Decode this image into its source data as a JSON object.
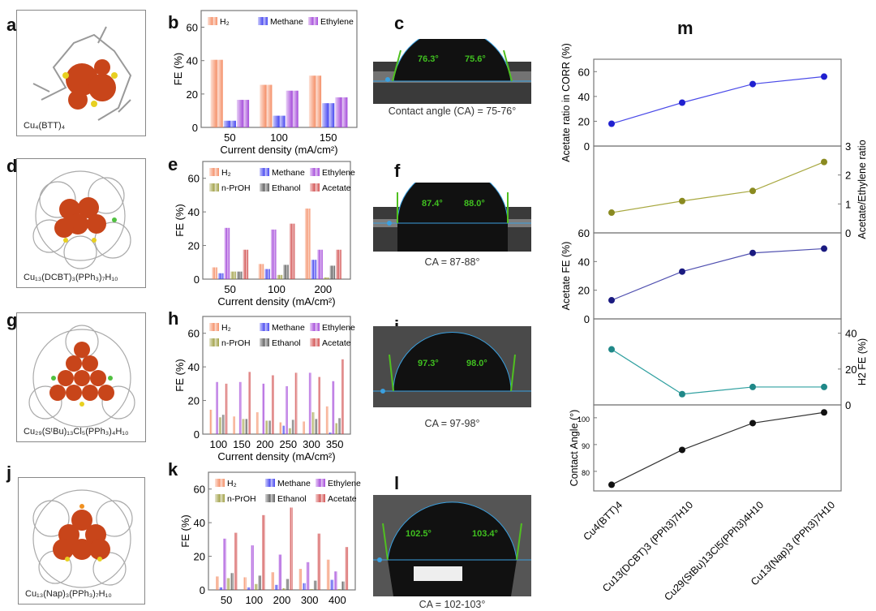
{
  "panel_letters": {
    "a": "a",
    "b": "b",
    "c": "c",
    "d": "d",
    "e": "e",
    "f": "f",
    "g": "g",
    "h": "h",
    "i": "i",
    "j": "j",
    "k": "k",
    "l": "l",
    "m": "m"
  },
  "molecules": [
    {
      "caption": "Cu₄(BTT)₄"
    },
    {
      "caption": "Cu₁₃(DCBT)₃(PPh₃)₇H₁₀"
    },
    {
      "caption": "Cu₂₉(SᵗBu)₁₃Cl₅(PPh₃)₄H₁₀"
    },
    {
      "caption": "Cu₁₃(Nap)₃(PPh₃)₇H₁₀"
    }
  ],
  "contact_angles": [
    {
      "left": "76.3°",
      "right": "75.6°",
      "caption": "Contact angle (CA) = 75-76°"
    },
    {
      "left": "87.4°",
      "right": "88.0°",
      "caption": "CA = 87-88°"
    },
    {
      "left": "97.3°",
      "right": "98.0°",
      "caption": "CA = 97-98°"
    },
    {
      "left": "102.5°",
      "right": "103.4°",
      "caption": "CA = 102-103°"
    }
  ],
  "colors": {
    "H2": "#f4895f",
    "Methane": "#3b3bef",
    "Ethylene": "#a040d8",
    "n-PrOH": "#9a9a3a",
    "Ethanol": "#555555",
    "Acetate": "#d04848"
  },
  "chart_data": [
    {
      "id": "b",
      "type": "bar",
      "ylabel": "FE (%)",
      "xlabel": "Current density (mA/cm²)",
      "ylim": [
        0,
        70
      ],
      "yticks": [
        0,
        20,
        40,
        60
      ],
      "categories": [
        "50",
        "100",
        "150"
      ],
      "series": [
        {
          "name": "H₂",
          "key": "H2",
          "values": [
            40.5,
            25.5,
            31
          ]
        },
        {
          "name": "Methane",
          "key": "Methane",
          "values": [
            4,
            7,
            14.5
          ]
        },
        {
          "name": "Ethylene",
          "key": "Ethylene",
          "values": [
            16.5,
            22,
            18
          ]
        }
      ]
    },
    {
      "id": "e",
      "type": "bar",
      "ylabel": "FE (%)",
      "xlabel": "Current density (mA/cm²)",
      "ylim": [
        0,
        70
      ],
      "yticks": [
        0,
        20,
        40,
        60
      ],
      "categories": [
        "50",
        "100",
        "200"
      ],
      "series": [
        {
          "name": "H₂",
          "key": "H2",
          "values": [
            7,
            9,
            42
          ]
        },
        {
          "name": "Methane",
          "key": "Methane",
          "values": [
            3.5,
            6,
            11.5
          ]
        },
        {
          "name": "Ethylene",
          "key": "Ethylene",
          "values": [
            30.5,
            29.5,
            17.5
          ]
        },
        {
          "name": "n-PrOH",
          "key": "n-PrOH",
          "values": [
            4.5,
            2.5,
            1
          ]
        },
        {
          "name": "Ethanol",
          "key": "Ethanol",
          "values": [
            4.5,
            8.5,
            8
          ]
        },
        {
          "name": "Acetate",
          "key": "Acetate",
          "values": [
            17.5,
            33,
            17.5
          ]
        }
      ]
    },
    {
      "id": "h",
      "type": "bar",
      "ylabel": "FE (%)",
      "xlabel": "Current density (mA/cm²)",
      "ylim": [
        0,
        70
      ],
      "yticks": [
        0,
        20,
        40,
        60
      ],
      "categories": [
        "100",
        "150",
        "200",
        "250",
        "300",
        "350"
      ],
      "series": [
        {
          "name": "H₂",
          "key": "H2",
          "values": [
            14.5,
            10.5,
            13,
            7,
            7.5,
            16.5
          ]
        },
        {
          "name": "Methane",
          "key": "Methane",
          "values": [
            0,
            0,
            0,
            5,
            0,
            1
          ]
        },
        {
          "name": "Ethylene",
          "key": "Ethylene",
          "values": [
            31,
            31,
            30,
            28.5,
            36.5,
            31.5
          ]
        },
        {
          "name": "n-PrOH",
          "key": "n-PrOH",
          "values": [
            10,
            9,
            8,
            3.5,
            13,
            6.5
          ]
        },
        {
          "name": "Ethanol",
          "key": "Ethanol",
          "values": [
            11.5,
            9,
            8,
            8.5,
            9,
            9.5
          ]
        },
        {
          "name": "Acetate",
          "key": "Acetate",
          "values": [
            30,
            37,
            35,
            36.5,
            34,
            44.5
          ]
        }
      ]
    },
    {
      "id": "k",
      "type": "bar",
      "ylabel": "FE (%)",
      "xlabel": "",
      "ylim": [
        0,
        70
      ],
      "yticks": [
        0,
        20,
        40,
        60
      ],
      "categories": [
        "50",
        "100",
        "200",
        "300",
        "400"
      ],
      "series": [
        {
          "name": "H₂",
          "key": "H2",
          "values": [
            8,
            7.5,
            10.5,
            12.5,
            18
          ]
        },
        {
          "name": "Methane",
          "key": "Methane",
          "values": [
            1.5,
            1.5,
            3,
            4,
            6
          ]
        },
        {
          "name": "Ethylene",
          "key": "Ethylene",
          "values": [
            30.5,
            26.5,
            21,
            16.5,
            11
          ]
        },
        {
          "name": "n-PrOH",
          "key": "n-PrOH",
          "values": [
            7,
            3.5,
            1,
            0.5,
            0.5
          ]
        },
        {
          "name": "Ethanol",
          "key": "Ethanol",
          "values": [
            10,
            8.5,
            6.5,
            5.5,
            5
          ]
        },
        {
          "name": "Acetate",
          "key": "Acetate",
          "values": [
            34,
            44.5,
            49,
            33.5,
            25.5
          ]
        }
      ]
    },
    {
      "id": "m",
      "type": "line",
      "categories": [
        "Cu4(BTT)4",
        "Cu13(DCBT)3 (PPh3)7H10",
        "Cu29(StBu)13Cl5(PPh3)4H10",
        "Cu13(Nap)3 (PPh3)7H10"
      ],
      "series": [
        {
          "name": "Acetate ratio in CORR (%)",
          "axis": "left",
          "ylim": [
            0,
            70
          ],
          "yticks": [
            0,
            20,
            40,
            60
          ],
          "color": "#4a4ae8",
          "marker": "#2020d0",
          "values": [
            18,
            35,
            50,
            56
          ]
        },
        {
          "name": "Acetate/Ethylene ratio",
          "axis": "right",
          "ylim": [
            0,
            3
          ],
          "yticks": [
            0,
            1,
            2,
            3
          ],
          "color": "#a8a840",
          "marker": "#8a8a20",
          "values": [
            0.7,
            1.1,
            1.45,
            2.45
          ]
        },
        {
          "name": "Acetate FE (%)",
          "axis": "left",
          "ylim": [
            0,
            60
          ],
          "yticks": [
            0,
            20,
            40,
            60
          ],
          "color": "#5050b0",
          "marker": "#1a1a80",
          "values": [
            13,
            33,
            46,
            49
          ]
        },
        {
          "name": "H2 FE (%)",
          "axis": "right",
          "ylim": [
            0,
            48
          ],
          "yticks": [
            0,
            20,
            40
          ],
          "color": "#30a0a0",
          "marker": "#208888",
          "values": [
            31,
            6,
            10,
            10
          ]
        },
        {
          "name": "Contact Angle (°)",
          "axis": "left",
          "ylim": [
            72.7,
            104.8
          ],
          "yticks": [
            80,
            90,
            100
          ],
          "color": "#333333",
          "marker": "#111111",
          "values": [
            75,
            88,
            98,
            102
          ]
        }
      ]
    }
  ]
}
